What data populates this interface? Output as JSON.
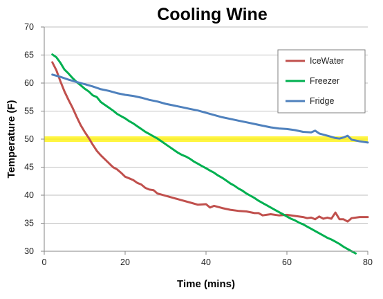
{
  "chart_data": {
    "type": "line",
    "title": "Cooling Wine",
    "xlabel": "Time (mins)",
    "ylabel": "Temperature (F)",
    "xlim": [
      0,
      80
    ],
    "ylim": [
      30,
      70
    ],
    "xticks": [
      0,
      20,
      40,
      60,
      80
    ],
    "yticks": [
      30,
      35,
      40,
      45,
      50,
      55,
      60,
      65,
      70
    ],
    "grid": {
      "horizontal": true,
      "vertical": false
    },
    "legend": "top-right",
    "reference_band": {
      "y": 50,
      "color": "#fff200"
    },
    "series": [
      {
        "name": "IceWater",
        "color": "#c0504d",
        "points": [
          [
            2,
            63.7
          ],
          [
            3,
            62.3
          ],
          [
            4,
            60.3
          ],
          [
            5,
            58.5
          ],
          [
            6,
            57.0
          ],
          [
            7,
            55.6
          ],
          [
            8,
            54.0
          ],
          [
            9,
            52.5
          ],
          [
            10,
            51.3
          ],
          [
            11,
            50.2
          ],
          [
            12,
            49.0
          ],
          [
            13,
            47.9
          ],
          [
            14,
            47.1
          ],
          [
            15,
            46.4
          ],
          [
            16,
            45.7
          ],
          [
            17,
            45.0
          ],
          [
            18,
            44.6
          ],
          [
            19,
            44.0
          ],
          [
            20,
            43.3
          ],
          [
            21,
            43.0
          ],
          [
            22,
            42.7
          ],
          [
            23,
            42.2
          ],
          [
            24,
            41.9
          ],
          [
            25,
            41.3
          ],
          [
            26,
            41.0
          ],
          [
            27,
            40.9
          ],
          [
            28,
            40.3
          ],
          [
            30,
            39.9
          ],
          [
            32,
            39.5
          ],
          [
            34,
            39.1
          ],
          [
            36,
            38.7
          ],
          [
            38,
            38.3
          ],
          [
            40,
            38.4
          ],
          [
            41,
            37.8
          ],
          [
            42,
            38.1
          ],
          [
            44,
            37.7
          ],
          [
            46,
            37.4
          ],
          [
            48,
            37.2
          ],
          [
            50,
            37.1
          ],
          [
            52,
            36.8
          ],
          [
            53,
            36.8
          ],
          [
            54,
            36.4
          ],
          [
            56,
            36.6
          ],
          [
            58,
            36.4
          ],
          [
            60,
            36.5
          ],
          [
            62,
            36.3
          ],
          [
            64,
            36.1
          ],
          [
            65,
            35.9
          ],
          [
            66,
            36.0
          ],
          [
            67,
            35.7
          ],
          [
            68,
            36.2
          ],
          [
            69,
            35.8
          ],
          [
            70,
            36.0
          ],
          [
            71,
            35.8
          ],
          [
            72,
            36.9
          ],
          [
            73,
            35.7
          ],
          [
            74,
            35.7
          ],
          [
            75,
            35.3
          ],
          [
            76,
            35.9
          ],
          [
            78,
            36.1
          ],
          [
            80,
            36.1
          ]
        ]
      },
      {
        "name": "Freezer",
        "color": "#00b050",
        "points": [
          [
            2,
            65.1
          ],
          [
            3,
            64.6
          ],
          [
            4,
            63.6
          ],
          [
            5,
            62.4
          ],
          [
            6,
            61.7
          ],
          [
            7,
            60.9
          ],
          [
            8,
            60.2
          ],
          [
            9,
            59.6
          ],
          [
            10,
            59.0
          ],
          [
            11,
            58.5
          ],
          [
            12,
            57.8
          ],
          [
            13,
            57.5
          ],
          [
            14,
            56.6
          ],
          [
            15,
            56.1
          ],
          [
            16,
            55.6
          ],
          [
            17,
            55.1
          ],
          [
            18,
            54.5
          ],
          [
            19,
            54.1
          ],
          [
            20,
            53.7
          ],
          [
            21,
            53.2
          ],
          [
            22,
            52.8
          ],
          [
            23,
            52.3
          ],
          [
            24,
            51.8
          ],
          [
            25,
            51.3
          ],
          [
            26,
            50.9
          ],
          [
            27,
            50.5
          ],
          [
            28,
            50.1
          ],
          [
            29,
            49.6
          ],
          [
            30,
            49.1
          ],
          [
            31,
            48.6
          ],
          [
            32,
            48.1
          ],
          [
            33,
            47.6
          ],
          [
            34,
            47.2
          ],
          [
            35,
            46.9
          ],
          [
            36,
            46.5
          ],
          [
            37,
            46.0
          ],
          [
            38,
            45.6
          ],
          [
            39,
            45.2
          ],
          [
            40,
            44.8
          ],
          [
            41,
            44.4
          ],
          [
            42,
            44.0
          ],
          [
            43,
            43.5
          ],
          [
            44,
            43.1
          ],
          [
            45,
            42.6
          ],
          [
            46,
            42.1
          ],
          [
            47,
            41.7
          ],
          [
            48,
            41.2
          ],
          [
            49,
            40.8
          ],
          [
            50,
            40.3
          ],
          [
            51,
            39.9
          ],
          [
            52,
            39.5
          ],
          [
            53,
            39.0
          ],
          [
            54,
            38.6
          ],
          [
            55,
            38.2
          ],
          [
            56,
            37.8
          ],
          [
            57,
            37.4
          ],
          [
            58,
            37.0
          ],
          [
            59,
            36.6
          ],
          [
            60,
            36.2
          ],
          [
            61,
            35.8
          ],
          [
            62,
            35.5
          ],
          [
            63,
            35.1
          ],
          [
            64,
            34.8
          ],
          [
            65,
            34.4
          ],
          [
            66,
            34.0
          ],
          [
            67,
            33.6
          ],
          [
            68,
            33.2
          ],
          [
            69,
            32.8
          ],
          [
            70,
            32.4
          ],
          [
            71,
            32.1
          ],
          [
            72,
            31.7
          ],
          [
            73,
            31.3
          ],
          [
            74,
            30.8
          ],
          [
            75,
            30.4
          ],
          [
            76,
            30.0
          ],
          [
            77,
            29.6
          ]
        ]
      },
      {
        "name": "Fridge",
        "color": "#4f81bd",
        "points": [
          [
            2,
            61.5
          ],
          [
            4,
            61.1
          ],
          [
            6,
            60.6
          ],
          [
            8,
            60.2
          ],
          [
            10,
            59.8
          ],
          [
            12,
            59.4
          ],
          [
            14,
            58.9
          ],
          [
            16,
            58.6
          ],
          [
            18,
            58.2
          ],
          [
            20,
            57.9
          ],
          [
            22,
            57.7
          ],
          [
            24,
            57.4
          ],
          [
            26,
            57.0
          ],
          [
            28,
            56.7
          ],
          [
            30,
            56.3
          ],
          [
            32,
            56.0
          ],
          [
            34,
            55.7
          ],
          [
            36,
            55.4
          ],
          [
            38,
            55.1
          ],
          [
            40,
            54.7
          ],
          [
            42,
            54.3
          ],
          [
            44,
            53.9
          ],
          [
            46,
            53.6
          ],
          [
            48,
            53.3
          ],
          [
            50,
            53.0
          ],
          [
            52,
            52.7
          ],
          [
            54,
            52.4
          ],
          [
            56,
            52.1
          ],
          [
            58,
            51.9
          ],
          [
            60,
            51.8
          ],
          [
            62,
            51.6
          ],
          [
            64,
            51.3
          ],
          [
            66,
            51.2
          ],
          [
            67,
            51.5
          ],
          [
            68,
            51.0
          ],
          [
            70,
            50.6
          ],
          [
            72,
            50.2
          ],
          [
            73,
            50.1
          ],
          [
            74,
            50.3
          ],
          [
            75,
            50.6
          ],
          [
            76,
            49.9
          ],
          [
            78,
            49.6
          ],
          [
            80,
            49.4
          ]
        ]
      }
    ]
  }
}
